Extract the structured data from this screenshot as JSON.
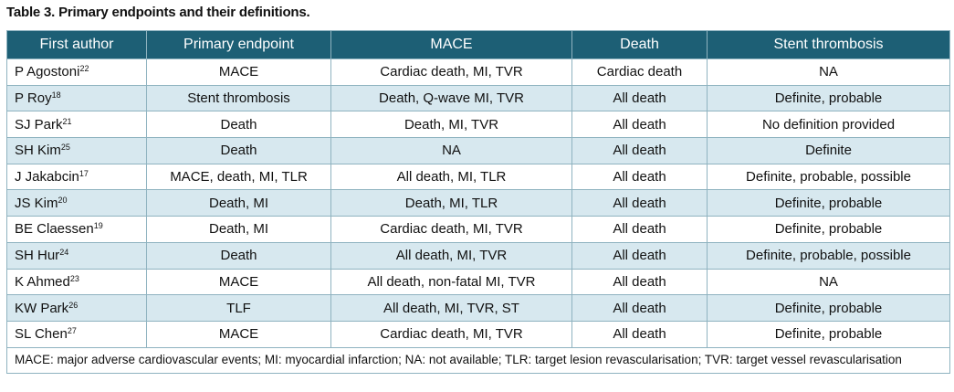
{
  "header": {
    "title": "Table 3. Primary endpoints and their definitions."
  },
  "table": {
    "columns": [
      "First author",
      "Primary endpoint",
      "MACE",
      "Death",
      "Stent thrombosis"
    ],
    "rows": [
      [
        {
          "name": "P Agostoni",
          "ref": "22"
        },
        "MACE",
        "Cardiac death, MI, TVR",
        "Cardiac death",
        "NA"
      ],
      [
        {
          "name": "P Roy",
          "ref": "18"
        },
        "Stent thrombosis",
        "Death, Q-wave MI, TVR",
        "All death",
        "Definite, probable"
      ],
      [
        {
          "name": "SJ Park",
          "ref": "21"
        },
        "Death",
        "Death, MI, TVR",
        "All death",
        "No definition provided"
      ],
      [
        {
          "name": "SH Kim",
          "ref": "25"
        },
        "Death",
        "NA",
        "All death",
        "Definite"
      ],
      [
        {
          "name": "J Jakabcin",
          "ref": "17"
        },
        "MACE, death, MI, TLR",
        "All death, MI, TLR",
        "All death",
        "Definite, probable, possible"
      ],
      [
        {
          "name": "JS Kim",
          "ref": "20"
        },
        "Death, MI",
        "Death, MI, TLR",
        "All death",
        "Definite, probable"
      ],
      [
        {
          "name": "BE Claessen",
          "ref": "19"
        },
        "Death, MI",
        "Cardiac death, MI, TVR",
        "All death",
        "Definite, probable"
      ],
      [
        {
          "name": "SH Hur",
          "ref": "24"
        },
        "Death",
        "All death, MI, TVR",
        "All death",
        "Definite, probable, possible"
      ],
      [
        {
          "name": "K Ahmed",
          "ref": "23"
        },
        "MACE",
        "All death, non-fatal MI, TVR",
        "All death",
        "NA"
      ],
      [
        {
          "name": "KW Park",
          "ref": "26"
        },
        "TLF",
        "All death, MI, TVR, ST",
        "All death",
        "Definite, probable"
      ],
      [
        {
          "name": "SL Chen",
          "ref": "27"
        },
        "MACE",
        "Cardiac death, MI, TVR",
        "All death",
        "Definite, probable"
      ]
    ],
    "footnote": "MACE: major adverse cardiovascular events; MI: myocardial infarction; NA: not available; TLR: target lesion revascularisation; TVR: target vessel revascularisation"
  }
}
